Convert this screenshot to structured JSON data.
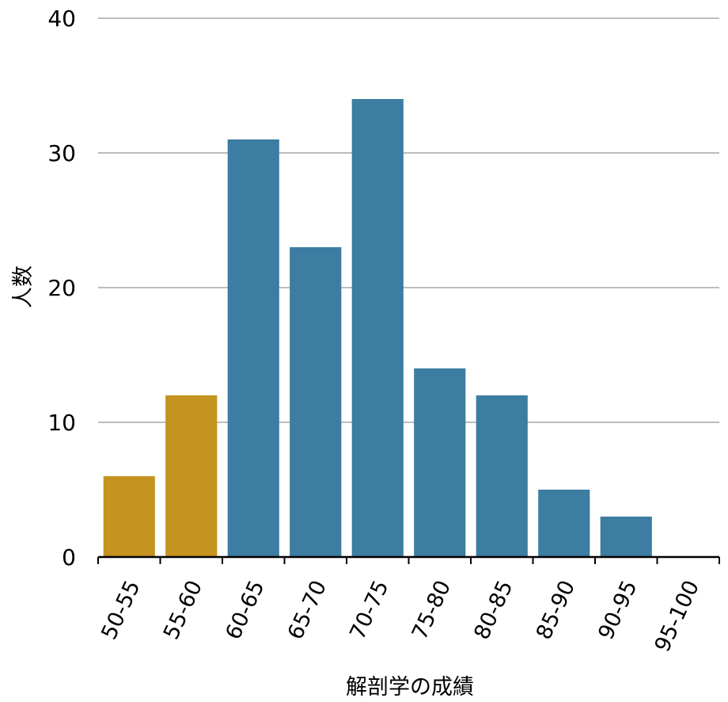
{
  "chart_data": {
    "type": "bar",
    "title": "",
    "xlabel": "解剖学の成績",
    "ylabel": "人数",
    "categories": [
      "50-55",
      "55-60",
      "60-65",
      "65-70",
      "70-75",
      "75-80",
      "80-85",
      "85-90",
      "90-95",
      "95-100"
    ],
    "values": [
      6,
      12,
      31,
      23,
      34,
      14,
      12,
      5,
      3,
      0
    ],
    "ylim": [
      0,
      40
    ],
    "yticks": [
      0,
      10,
      20,
      30,
      40
    ],
    "grid": true,
    "colors": {
      "highlight": "#C49320",
      "default": "#3C7DA1",
      "grid": "#BDBDBD",
      "axis": "#000000"
    },
    "highlighted_categories": [
      "50-55",
      "55-60"
    ]
  }
}
